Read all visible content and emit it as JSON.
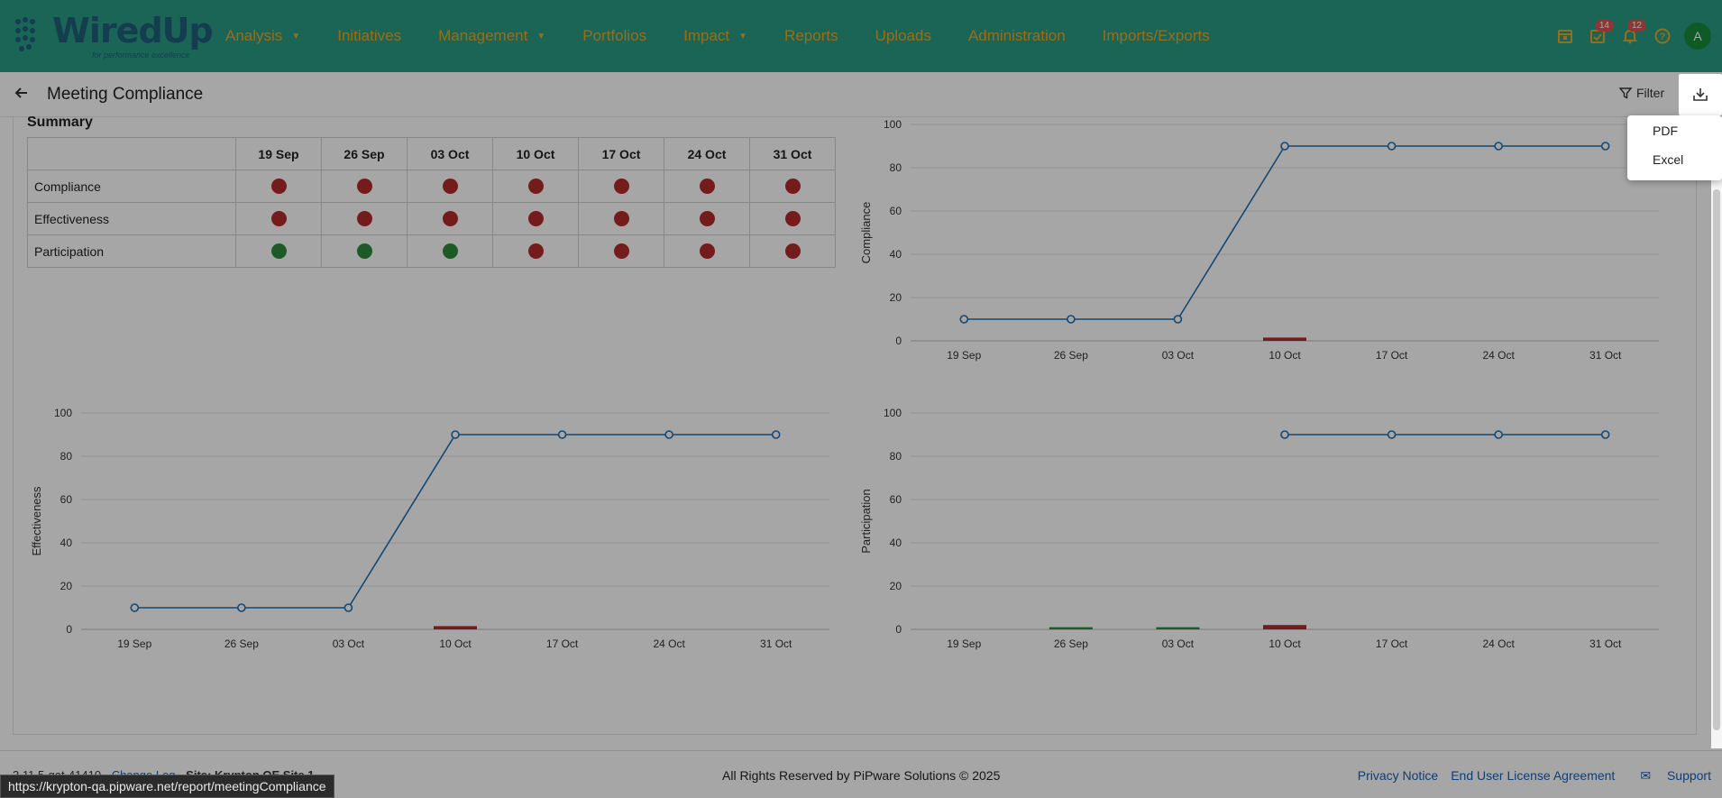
{
  "app": {
    "logo_text": "WiredUp",
    "logo_tagline": "for performance excellence"
  },
  "nav": {
    "items": [
      {
        "label": "Analysis",
        "dropdown": true
      },
      {
        "label": "Initiatives",
        "dropdown": false
      },
      {
        "label": "Management",
        "dropdown": true
      },
      {
        "label": "Portfolios",
        "dropdown": false
      },
      {
        "label": "Impact",
        "dropdown": true
      },
      {
        "label": "Reports",
        "dropdown": false
      },
      {
        "label": "Uploads",
        "dropdown": false
      },
      {
        "label": "Administration",
        "dropdown": false
      },
      {
        "label": "Imports/Exports",
        "dropdown": false
      }
    ],
    "tasks_badge": "14",
    "notifications_badge": "12",
    "avatar_initial": "A"
  },
  "header": {
    "title": "Meeting Compliance",
    "filter_label": "Filter"
  },
  "export_menu": {
    "items": [
      "PDF",
      "Excel"
    ]
  },
  "summary": {
    "title": "Summary",
    "columns": [
      "19 Sep",
      "26 Sep",
      "03 Oct",
      "10 Oct",
      "17 Oct",
      "24 Oct",
      "31 Oct"
    ],
    "rows": [
      {
        "label": "Compliance",
        "status": [
          "red",
          "red",
          "red",
          "red",
          "red",
          "red",
          "red"
        ]
      },
      {
        "label": "Effectiveness",
        "status": [
          "red",
          "red",
          "red",
          "red",
          "red",
          "red",
          "red"
        ]
      },
      {
        "label": "Participation",
        "status": [
          "green",
          "green",
          "green",
          "red",
          "red",
          "red",
          "red"
        ]
      }
    ],
    "colors": {
      "red": "#b22a2a",
      "green": "#2e8b3a"
    }
  },
  "chart_data": [
    {
      "type": "line",
      "ylabel": "Compliance",
      "x": [
        "19 Sep",
        "26 Sep",
        "03 Oct",
        "10 Oct",
        "17 Oct",
        "24 Oct",
        "31 Oct"
      ],
      "series": [
        {
          "values": [
            10,
            10,
            10,
            90,
            90,
            90,
            90
          ]
        }
      ],
      "markers": [
        {
          "x": "10 Oct",
          "color": "#b22a2a",
          "height": 1.5
        }
      ],
      "ylim": [
        0,
        100
      ],
      "yticks": [
        0,
        20,
        40,
        60,
        80,
        100
      ],
      "grid": true
    },
    {
      "type": "line",
      "ylabel": "Effectiveness",
      "x": [
        "19 Sep",
        "26 Sep",
        "03 Oct",
        "10 Oct",
        "17 Oct",
        "24 Oct",
        "31 Oct"
      ],
      "series": [
        {
          "values": [
            10,
            10,
            10,
            90,
            90,
            90,
            90
          ]
        }
      ],
      "markers": [
        {
          "x": "10 Oct",
          "color": "#b22a2a",
          "height": 1.5
        }
      ],
      "ylim": [
        0,
        100
      ],
      "yticks": [
        0,
        20,
        40,
        60,
        80,
        100
      ],
      "grid": true
    },
    {
      "type": "line",
      "ylabel": "Participation",
      "x": [
        "19 Sep",
        "26 Sep",
        "03 Oct",
        "10 Oct",
        "17 Oct",
        "24 Oct",
        "31 Oct"
      ],
      "series": [
        {
          "values": [
            null,
            null,
            null,
            90,
            90,
            90,
            90
          ]
        }
      ],
      "markers": [
        {
          "x": "26 Sep",
          "color": "#2e8b3a",
          "height": 1
        },
        {
          "x": "03 Oct",
          "color": "#2e8b3a",
          "height": 1
        },
        {
          "x": "10 Oct",
          "color": "#b22a2a",
          "height": 2
        }
      ],
      "ylim": [
        0,
        100
      ],
      "yticks": [
        0,
        20,
        40,
        60,
        80,
        100
      ],
      "grid": true
    }
  ],
  "footer": {
    "version_text": "3.11.5-qat-41410",
    "change_log": "Change Log",
    "site": "Site: Krypton QE Site 1",
    "copyright": "All Rights Reserved by PiPware Solutions © 2025",
    "privacy": "Privacy Notice",
    "eula": "End User License Agreement",
    "support": "Support"
  },
  "status_url": "https://krypton-qa.pipware.net/report/meetingCompliance",
  "theme": {
    "nav_bg": "#2a9b86",
    "nav_text": "#e6a92a",
    "line_color": "#1f6fb2"
  }
}
